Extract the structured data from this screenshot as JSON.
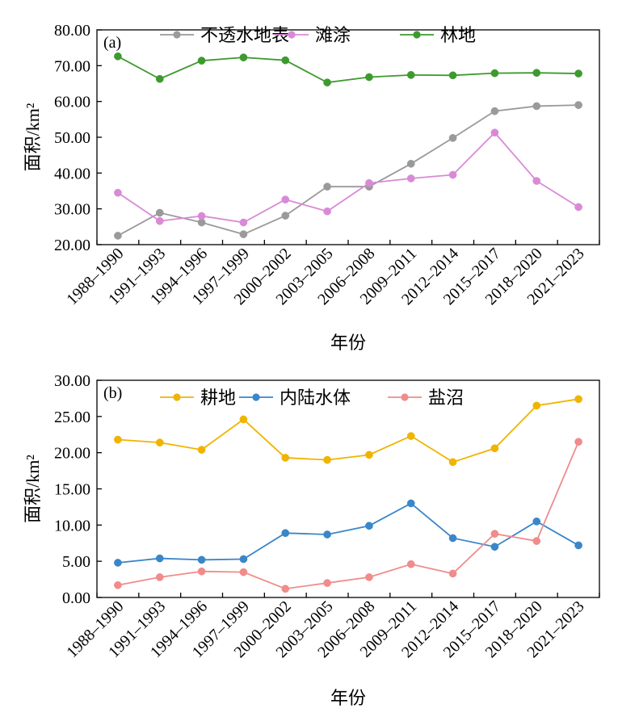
{
  "chart_data": [
    {
      "type": "line",
      "panel_label": "(a)",
      "categories": [
        "1988–1990",
        "1991–1993",
        "1994–1996",
        "1997–1999",
        "2000–2002",
        "2003–2005",
        "2006–2008",
        "2009–2011",
        "2012–2014",
        "2015–2017",
        "2018–2020",
        "2021–2023"
      ],
      "ylabel": "面积/km²",
      "xlabel": "年份",
      "ylim": [
        20,
        80
      ],
      "yticks": [
        "20.00",
        "30.00",
        "40.00",
        "50.00",
        "60.00",
        "70.00",
        "80.00"
      ],
      "grid": false,
      "legend": "top",
      "series": [
        {
          "name": "不透水地表",
          "color": "#9a9a9a",
          "values": [
            22.5,
            28.9,
            26.2,
            22.9,
            28.1,
            36.2,
            36.2,
            42.6,
            49.8,
            57.3,
            58.7,
            59.0
          ]
        },
        {
          "name": "滩涂",
          "color": "#d98ad6",
          "values": [
            34.5,
            26.6,
            28.0,
            26.2,
            32.6,
            29.3,
            37.2,
            38.5,
            39.5,
            51.3,
            37.8,
            30.5
          ]
        },
        {
          "name": "林地",
          "color": "#3e9a2e",
          "values": [
            72.6,
            66.3,
            71.4,
            72.3,
            71.5,
            65.3,
            66.8,
            67.4,
            67.3,
            67.9,
            68.0,
            67.8
          ]
        }
      ]
    },
    {
      "type": "line",
      "panel_label": "(b)",
      "categories": [
        "1988–1990",
        "1991–1993",
        "1994–1996",
        "1997–1999",
        "2000–2002",
        "2003–2005",
        "2006–2008",
        "2009–2011",
        "2012–2014",
        "2015–2017",
        "2018–2020",
        "2021–2023"
      ],
      "ylabel": "面积/km²",
      "xlabel": "年份",
      "ylim": [
        0,
        30
      ],
      "yticks": [
        "0.00",
        "5.00",
        "10.00",
        "15.00",
        "20.00",
        "25.00",
        "30.00"
      ],
      "grid": false,
      "legend": "top",
      "series": [
        {
          "name": "耕地",
          "color": "#f0b400",
          "values": [
            21.8,
            21.4,
            20.4,
            24.6,
            19.3,
            19.0,
            19.7,
            22.3,
            18.7,
            20.6,
            26.5,
            27.4
          ]
        },
        {
          "name": "内陆水体",
          "color": "#3a86c8",
          "values": [
            4.8,
            5.4,
            5.2,
            5.3,
            8.9,
            8.7,
            9.9,
            13.0,
            8.2,
            7.0,
            10.5,
            7.2
          ]
        },
        {
          "name": "盐沼",
          "color": "#f08c8c",
          "values": [
            1.7,
            2.8,
            3.6,
            3.5,
            1.2,
            2.0,
            2.8,
            4.6,
            3.3,
            8.8,
            7.8,
            21.5
          ]
        }
      ]
    }
  ]
}
